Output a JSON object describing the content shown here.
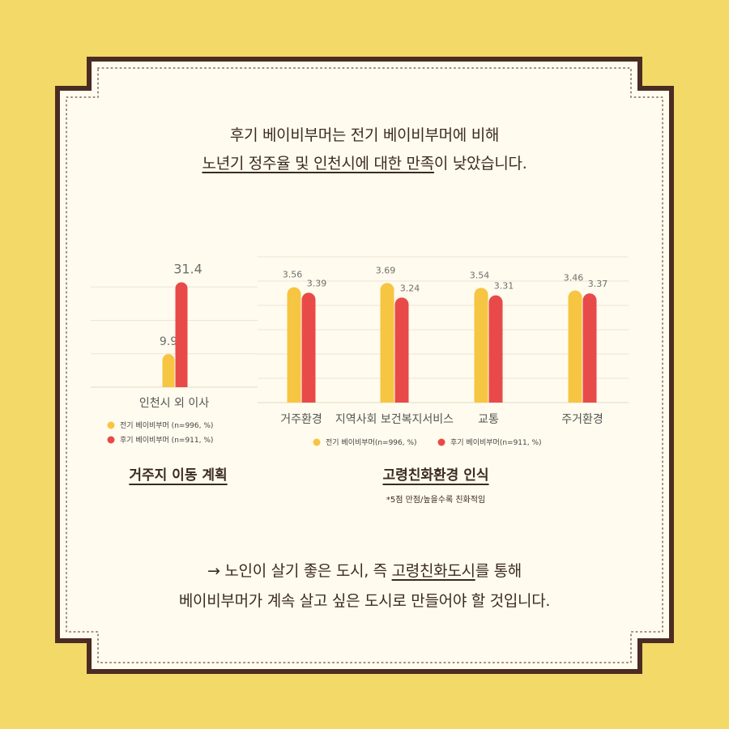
{
  "headline": {
    "line1": "후기 베이비부머는 전기 베이비부머에 비해",
    "line2_underlined": "노년기 정주율 및 인천시에 대한 만족",
    "line2_rest": "이 낮았습니다."
  },
  "conclusion": {
    "line1_prefix": "→ 노인이 살기 좋은 도시, 즉 ",
    "line1_underlined": "고령친화도시",
    "line1_suffix": "를 통해",
    "line2": "베이비부머가 계속 살고 싶은 도시로 만들어야 할 것입니다."
  },
  "chart_data": [
    {
      "type": "bar",
      "subtitle": "거주지 이동 계획",
      "categories": [
        "인천시 외 이사"
      ],
      "series": [
        {
          "name": "전기 베이비부머 (n=996, %)",
          "values": [
            9.9
          ]
        },
        {
          "name": "후기 베이비부머 (n=911, %)",
          "values": [
            31.4
          ]
        }
      ],
      "ylim": [
        0,
        40
      ],
      "grid": true,
      "legend": "bottom-left"
    },
    {
      "type": "bar",
      "subtitle": "고령친화환경 인식",
      "note": "*5점 만점/높을수록 친화적임",
      "categories": [
        "거주환경",
        "지역사회 보건복지서비스",
        "교통",
        "주거환경"
      ],
      "series": [
        {
          "name": "전기 베이비부머(n=996, %)",
          "values": [
            3.56,
            3.69,
            3.54,
            3.46
          ]
        },
        {
          "name": "후기 베이비부머(n=911, %)",
          "values": [
            3.39,
            3.24,
            3.31,
            3.37
          ]
        }
      ],
      "ylim": [
        0,
        4.5
      ],
      "grid": true,
      "legend": "bottom"
    }
  ],
  "colors": {
    "early": "#f6c542",
    "late": "#e84a4a",
    "frame": "#4a2c22",
    "paper": "#fffbee",
    "background": "#f2d968"
  }
}
